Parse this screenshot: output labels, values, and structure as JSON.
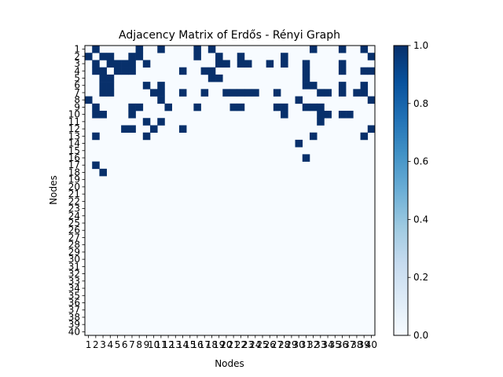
{
  "chart_data": {
    "type": "heatmap",
    "title": "Adjacency Matrix of Erdős - Rényi Graph",
    "xlabel": "Nodes",
    "ylabel": "Nodes",
    "n": 40,
    "row_labels": [
      "1",
      "2",
      "3",
      "4",
      "5",
      "6",
      "7",
      "8",
      "9",
      "10",
      "11",
      "12",
      "13",
      "14",
      "15",
      "16",
      "17",
      "18",
      "19",
      "20",
      "21",
      "22",
      "23",
      "24",
      "25",
      "26",
      "27",
      "28",
      "29",
      "30",
      "31",
      "32",
      "33",
      "34",
      "35",
      "36",
      "37",
      "38",
      "39",
      "40"
    ],
    "col_labels": [
      "1",
      "2",
      "3",
      "4",
      "5",
      "6",
      "7",
      "8",
      "9",
      "10",
      "11",
      "12",
      "13",
      "14",
      "15",
      "16",
      "17",
      "18",
      "19",
      "20",
      "21",
      "22",
      "23",
      "24",
      "25",
      "26",
      "27",
      "28",
      "29",
      "30",
      "31",
      "32",
      "33",
      "34",
      "35",
      "36",
      "37",
      "38",
      "39",
      "40"
    ],
    "colorbar": {
      "min": 0.0,
      "max": 1.0,
      "ticks": [
        "0.0",
        "0.2",
        "0.4",
        "0.6",
        "0.8",
        "1.0"
      ],
      "colormap": "Blues",
      "color_low": "#f7fbff",
      "color_high": "#08306b"
    },
    "rows": [
      "0100000100100001010000000000000100010010",
      "1011001100000001001001000001000000000001",
      "0101111010000000001101100101001000010000",
      "0110111000000100110000000000001000010011",
      "0011000000000000011000000000001000000000",
      "0011000010100000000000000000001100010010",
      "0011000001100100100111110010000011010110",
      "1000000000100000000000000000010000000001",
      "0100001100010001000011000011001110000000",
      "0110001000000000000000000001000011011000",
      "0000000010100000000000000000000010000000",
      "0000011001000100000000000000000000000001",
      "0100000010000000000000000000000100000010",
      "0000000000000000000000000000010000000000",
      "0000000000000000000000000000000000000000",
      "0000000000000000000000000000001000000000",
      "0100000000000000000000000000000000000000",
      "0010000000000000000000000000000000000000",
      "0000000000000000000000000000000000000000",
      "0000000000000000000000000000000000000000",
      "0000000000000000000000000000000000000000",
      "0000000000000000000000000000000000000000",
      "0000000000000000000000000000000000000000",
      "0000000000000000000000000000000000000000",
      "0000000000000000000000000000000000000000",
      "0000000000000000000000000000000000000000",
      "0000000000000000000000000000000000000000",
      "0000000000000000000000000000000000000000",
      "0000000000000000000000000000000000000000",
      "0000000000000000000000000000000000000000",
      "0000000000000000000000000000000000000000",
      "0000000000000000000000000000000000000000",
      "0000000000000000000000000000000000000000",
      "0000000000000000000000000000000000000000",
      "0000000000000000000000000000000000000000",
      "0000000000000000000000000000000000000000",
      "0000000000000000000000000000000000000000",
      "0000000000000000000000000000000000000000",
      "0000000000000000000000000000000000000000",
      "0000000000000000000000000000000000000000"
    ]
  }
}
